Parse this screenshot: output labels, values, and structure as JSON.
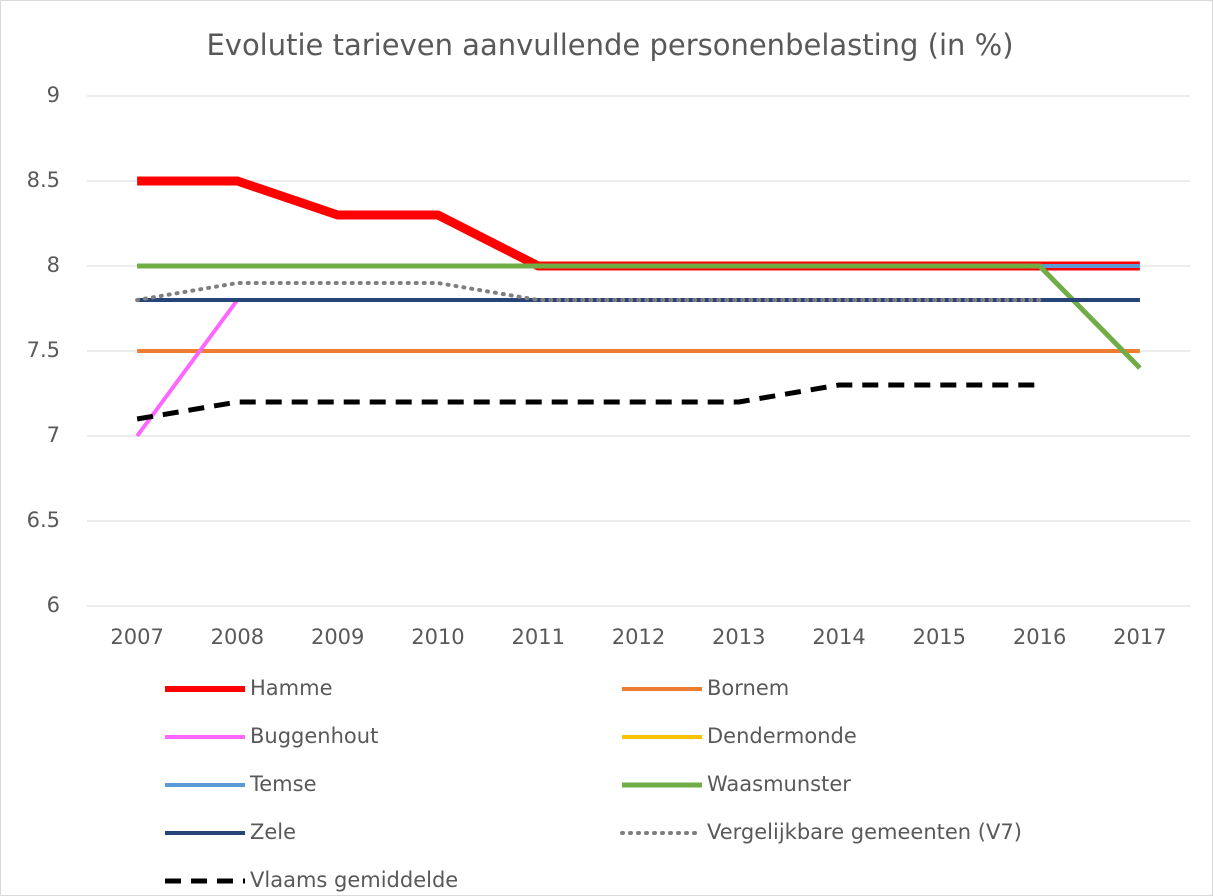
{
  "chart_data": {
    "type": "line",
    "title": "Evolutie tarieven aanvullende personenbelasting (in %)",
    "categories": [
      "2007",
      "2008",
      "2009",
      "2010",
      "2011",
      "2012",
      "2013",
      "2014",
      "2015",
      "2016",
      "2017"
    ],
    "ylim": [
      6,
      9
    ],
    "yticks": [
      6,
      6.5,
      7,
      7.5,
      8,
      8.5,
      9
    ],
    "grid": true,
    "series": [
      {
        "name": "Hamme",
        "color": "#ff0000",
        "values": [
          8.5,
          8.5,
          8.3,
          8.3,
          8.0,
          8.0,
          8.0,
          8.0,
          8.0,
          8.0,
          8.0
        ]
      },
      {
        "name": "Bornem",
        "color": "#ed7d31",
        "values": [
          7.5,
          7.5,
          7.5,
          7.5,
          7.5,
          7.5,
          7.5,
          7.5,
          7.5,
          7.5,
          7.5
        ]
      },
      {
        "name": "Buggenhout",
        "color": "#ff66ff",
        "values": [
          7.0,
          7.8,
          7.8,
          7.8,
          7.8,
          7.8,
          7.8,
          7.8,
          7.8,
          7.8,
          7.8
        ]
      },
      {
        "name": "Dendermonde",
        "color": "#ffc000",
        "values": [
          8.0,
          8.0,
          8.0,
          8.0,
          8.0,
          8.0,
          8.0,
          8.0,
          8.0,
          8.0,
          8.0
        ]
      },
      {
        "name": "Temse",
        "color": "#5b9bd5",
        "values": [
          8.0,
          8.0,
          8.0,
          8.0,
          8.0,
          8.0,
          8.0,
          8.0,
          8.0,
          8.0,
          8.0
        ]
      },
      {
        "name": "Waasmunster",
        "color": "#70ad47",
        "values": [
          8.0,
          8.0,
          8.0,
          8.0,
          8.0,
          8.0,
          8.0,
          8.0,
          8.0,
          8.0,
          7.4
        ]
      },
      {
        "name": "Zele",
        "color": "#264478",
        "values": [
          7.8,
          7.8,
          7.8,
          7.8,
          7.8,
          7.8,
          7.8,
          7.8,
          7.8,
          7.8,
          7.8
        ]
      },
      {
        "name": "Vergelijkbare gemeenten (V7)",
        "color": "#7f7f7f",
        "values": [
          7.8,
          7.9,
          7.9,
          7.9,
          7.8,
          7.8,
          7.8,
          7.8,
          7.8,
          7.8,
          null
        ]
      },
      {
        "name": "Vlaams gemiddelde",
        "color": "#000000",
        "values": [
          7.1,
          7.2,
          7.2,
          7.2,
          7.2,
          7.2,
          7.2,
          7.3,
          7.3,
          7.3,
          null
        ]
      }
    ]
  }
}
